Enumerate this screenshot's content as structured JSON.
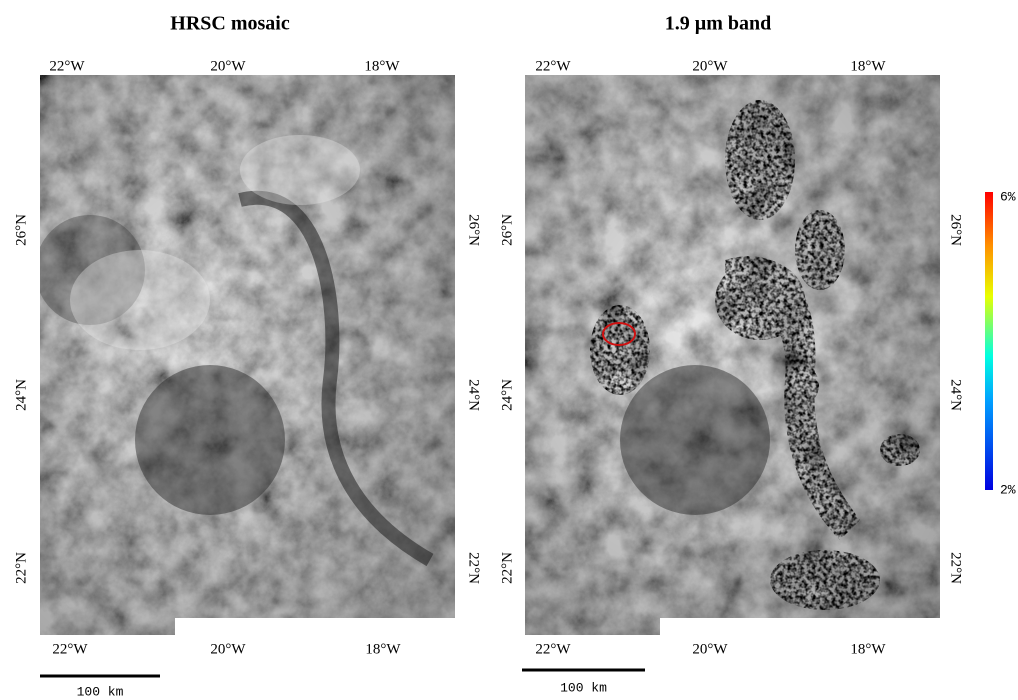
{
  "panels": [
    {
      "title": "HRSC mosaic",
      "top_labels": [
        "22°W",
        "20°W",
        "18°W"
      ],
      "bottom_labels": [
        "22°W",
        "20°W",
        "18°W"
      ],
      "left_labels": [
        "26°N",
        "24°N",
        "22°N"
      ],
      "right_labels": [
        "26°N",
        "24°N",
        "22°N"
      ],
      "scale_bar": "100 km"
    },
    {
      "title": "1.9 µm band",
      "top_labels": [
        "22°W",
        "20°W",
        "18°W"
      ],
      "bottom_labels": [
        "22°W",
        "20°W",
        "18°W"
      ],
      "left_labels": [
        "26°N",
        "24°N",
        "22°N"
      ],
      "right_labels": [
        "26°N",
        "24°N",
        "22°N"
      ],
      "scale_bar": "100 km"
    }
  ],
  "colorbar": {
    "max_label": "6%",
    "min_label": "2%"
  }
}
